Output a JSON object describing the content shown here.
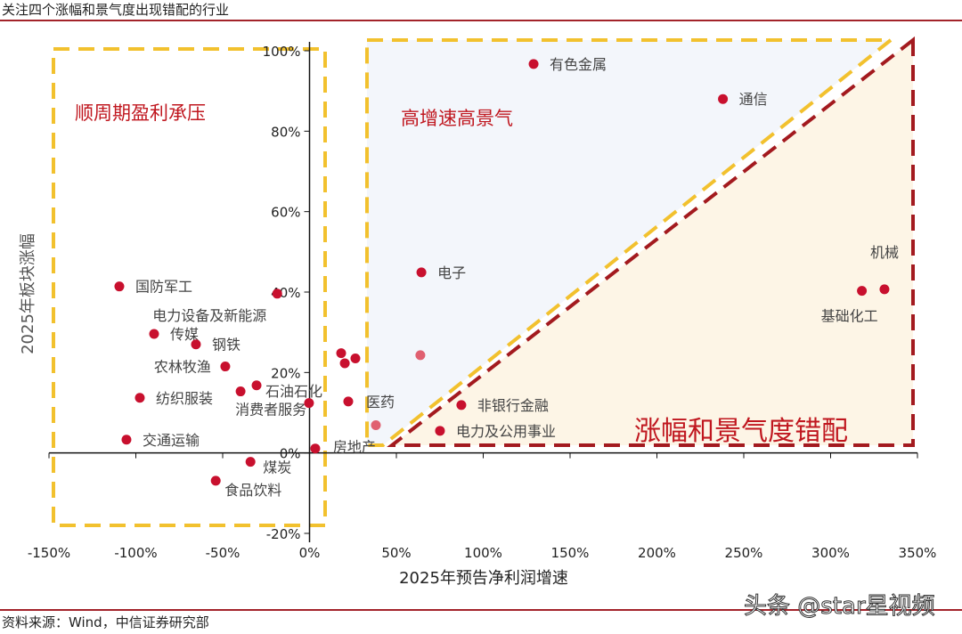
{
  "header": {
    "title": "关注四个涨幅和景气度出现错配的行业"
  },
  "footer": {
    "source": "资料来源：Wind，中信证券研究部",
    "watermark": "头条 @star星视频"
  },
  "colors": {
    "point": "#c8102e",
    "point_light": "#e06070",
    "yellow": "#f2c12e",
    "red": "#a31a1f",
    "blue_fill": "#f3f6fb",
    "beige_fill": "#fdf5e6",
    "region_text": "#c0171f"
  },
  "chart_data": {
    "type": "scatter",
    "title": "",
    "xlabel": "2025年预告净利润增速",
    "ylabel": "2025年板块涨幅",
    "xlim": [
      -150,
      350
    ],
    "ylim": [
      -20,
      100
    ],
    "xticks": [
      -150,
      -100,
      -50,
      0,
      50,
      100,
      150,
      200,
      250,
      300,
      350
    ],
    "xtick_labels": [
      "-150%",
      "-100%",
      "-50%",
      "0%",
      "50%",
      "100%",
      "150%",
      "200%",
      "250%",
      "300%",
      "350%"
    ],
    "yticks": [
      -20,
      0,
      20,
      40,
      60,
      80,
      100
    ],
    "ytick_labels": [
      "-20%",
      "0%",
      "20%",
      "40%",
      "60%",
      "80%",
      "100%"
    ],
    "regions": [
      {
        "label": "顺周期盈利承压"
      },
      {
        "label": "高增速高景气"
      },
      {
        "label": "涨幅和景气度错配"
      }
    ],
    "points": [
      {
        "name": "国防军工",
        "x": -109.5,
        "y": 41.4
      },
      {
        "name": "电力设备及新能源",
        "x": -18.6,
        "y": 39.6
      },
      {
        "name": "传媒",
        "x": -89.5,
        "y": 29.6
      },
      {
        "name": "钢铁",
        "x": -65.4,
        "y": 27.0
      },
      {
        "name": "农林牧渔",
        "x": -48.5,
        "y": 21.5
      },
      {
        "name": "石油石化",
        "x": -30.5,
        "y": 16.8
      },
      {
        "name": "消费者服务",
        "x": -39.7,
        "y": 15.3
      },
      {
        "name": "纺织服装",
        "x": -97.7,
        "y": 13.7
      },
      {
        "name": "",
        "x": -0.3,
        "y": 12.4
      },
      {
        "name": "交通运输",
        "x": -105.4,
        "y": 3.3
      },
      {
        "name": "房地产",
        "x": 3.3,
        "y": 1.1
      },
      {
        "name": "煤炭",
        "x": -34.0,
        "y": -2.2
      },
      {
        "name": "食品饮料",
        "x": -54.0,
        "y": -6.9
      },
      {
        "name": "",
        "x": 18.2,
        "y": 24.8
      },
      {
        "name": "",
        "x": 20.3,
        "y": 22.3
      },
      {
        "name": "",
        "x": 26.4,
        "y": 23.5
      },
      {
        "name": "医药",
        "x": 22.3,
        "y": 12.8
      },
      {
        "name": "",
        "x": 38.2,
        "y": 6.9
      },
      {
        "name": "电子",
        "x": 64.4,
        "y": 44.9
      },
      {
        "name": "",
        "x": 63.8,
        "y": 24.3
      },
      {
        "name": "有色金属",
        "x": 129,
        "y": 96.7
      },
      {
        "name": "通信",
        "x": 238,
        "y": 88
      },
      {
        "name": "非银行金融",
        "x": 87.4,
        "y": 11.9
      },
      {
        "name": "电力及公用事业",
        "x": 75.1,
        "y": 5.5
      },
      {
        "name": "基础化工",
        "x": 318,
        "y": 40.3
      },
      {
        "name": "机械",
        "x": 331,
        "y": 40.7
      }
    ]
  }
}
